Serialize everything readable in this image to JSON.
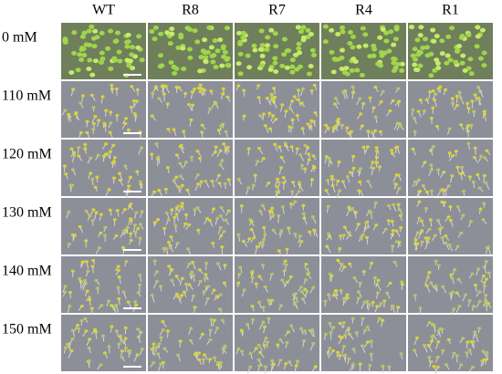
{
  "columns": [
    "WT",
    "R8",
    "R7",
    "R4",
    "R1"
  ],
  "rows": [
    "0 mM",
    "110 mM",
    "120 mM",
    "130 mM",
    "140 mM",
    "150 mM"
  ]
}
